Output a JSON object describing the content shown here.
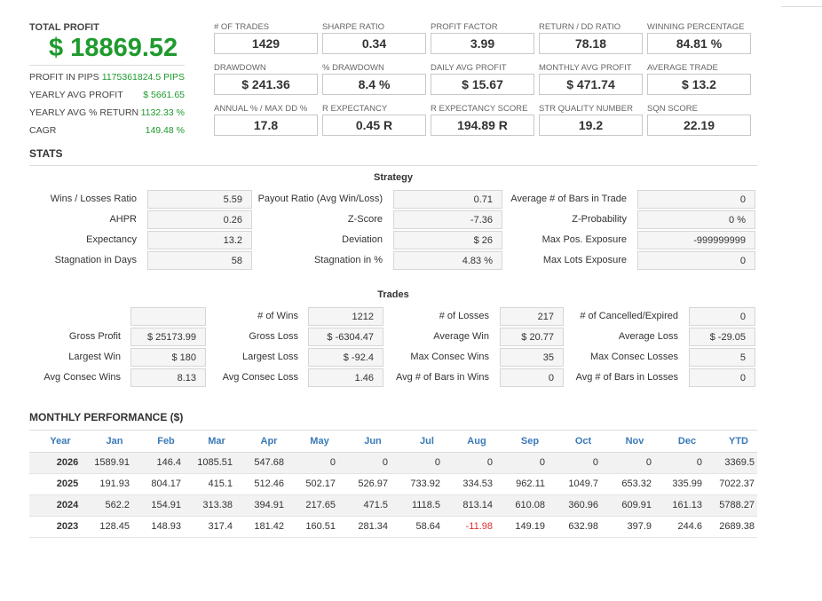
{
  "summary": {
    "title": "TOTAL PROFIT",
    "total": "$ 18869.52",
    "rows": [
      {
        "label": "PROFIT IN PIPS",
        "value": "1175361824.5 PIPS"
      },
      {
        "label": "YEARLY AVG PROFIT",
        "value": "$ 5661.65"
      },
      {
        "label": "YEARLY AVG % RETURN",
        "value": "1132.33 %"
      },
      {
        "label": "CAGR",
        "value": "149.48 %"
      }
    ]
  },
  "metrics": [
    [
      {
        "label": "# OF TRADES",
        "value": "1429"
      },
      {
        "label": "SHARPE RATIO",
        "value": "0.34"
      },
      {
        "label": "PROFIT FACTOR",
        "value": "3.99"
      },
      {
        "label": "RETURN / DD RATIO",
        "value": "78.18"
      },
      {
        "label": "WINNING PERCENTAGE",
        "value": "84.81 %"
      }
    ],
    [
      {
        "label": "DRAWDOWN",
        "value": "$ 241.36"
      },
      {
        "label": "% DRAWDOWN",
        "value": "8.4 %"
      },
      {
        "label": "DAILY AVG PROFIT",
        "value": "$ 15.67"
      },
      {
        "label": "MONTHLY AVG PROFIT",
        "value": "$ 471.74"
      },
      {
        "label": "AVERAGE TRADE",
        "value": "$ 13.2"
      }
    ],
    [
      {
        "label": "ANNUAL % / MAX DD %",
        "value": "17.8"
      },
      {
        "label": "R EXPECTANCY",
        "value": "0.45 R"
      },
      {
        "label": "R EXPECTANCY SCORE",
        "value": "194.89 R"
      },
      {
        "label": "STR QUALITY NUMBER",
        "value": "19.2"
      },
      {
        "label": "SQN SCORE",
        "value": "22.19"
      }
    ]
  ],
  "stats": {
    "title": "STATS",
    "strategy": {
      "title": "Strategy",
      "rows": [
        [
          {
            "label": "Wins / Losses Ratio",
            "value": "5.59"
          },
          {
            "label": "Payout Ratio (Avg Win/Loss)",
            "value": "0.71"
          },
          {
            "label": "Average # of Bars in Trade",
            "value": "0"
          }
        ],
        [
          {
            "label": "AHPR",
            "value": "0.26"
          },
          {
            "label": "Z-Score",
            "value": "-7.36"
          },
          {
            "label": "Z-Probability",
            "value": "0 %"
          }
        ],
        [
          {
            "label": "Expectancy",
            "value": "13.2"
          },
          {
            "label": "Deviation",
            "value": "$ 26"
          },
          {
            "label": "Max Pos. Exposure",
            "value": "-999999999"
          }
        ],
        [
          {
            "label": "Stagnation in Days",
            "value": "58"
          },
          {
            "label": "Stagnation in %",
            "value": "4.83 %"
          },
          {
            "label": "Max Lots Exposure",
            "value": "0"
          }
        ]
      ]
    },
    "trades": {
      "title": "Trades",
      "rows": [
        [
          {
            "label": null,
            "value": null
          },
          {
            "label": "# of Wins",
            "value": "1212"
          },
          {
            "label": "# of Losses",
            "value": "217"
          },
          {
            "label": "# of Cancelled/Expired",
            "value": "0"
          }
        ],
        [
          {
            "label": "Gross Profit",
            "value": "$ 25173.99"
          },
          {
            "label": "Gross Loss",
            "value": "$ -6304.47"
          },
          {
            "label": "Average Win",
            "value": "$ 20.77"
          },
          {
            "label": "Average Loss",
            "value": "$ -29.05"
          }
        ],
        [
          {
            "label": "Largest Win",
            "value": "$ 180"
          },
          {
            "label": "Largest Loss",
            "value": "$ -92.4"
          },
          {
            "label": "Max Consec Wins",
            "value": "35"
          },
          {
            "label": "Max Consec Losses",
            "value": "5"
          }
        ],
        [
          {
            "label": "Avg Consec Wins",
            "value": "8.13"
          },
          {
            "label": "Avg Consec Loss",
            "value": "1.46"
          },
          {
            "label": "Avg # of Bars in Wins",
            "value": "0"
          },
          {
            "label": "Avg # of Bars in Losses",
            "value": "0"
          }
        ]
      ]
    }
  },
  "monthly": {
    "title": "MONTHLY PERFORMANCE ($)",
    "header": [
      "Year",
      "Jan",
      "Feb",
      "Mar",
      "Apr",
      "May",
      "Jun",
      "Jul",
      "Aug",
      "Sep",
      "Oct",
      "Nov",
      "Dec",
      "YTD"
    ],
    "rows": [
      [
        "2026",
        "1589.91",
        "146.4",
        "1085.51",
        "547.68",
        "0",
        "0",
        "0",
        "0",
        "0",
        "0",
        "0",
        "0",
        "3369.5"
      ],
      [
        "2025",
        "191.93",
        "804.17",
        "415.1",
        "512.46",
        "502.17",
        "526.97",
        "733.92",
        "334.53",
        "962.11",
        "1049.7",
        "653.32",
        "335.99",
        "7022.37"
      ],
      [
        "2024",
        "562.2",
        "154.91",
        "313.38",
        "394.91",
        "217.65",
        "471.5",
        "1118.5",
        "813.14",
        "610.08",
        "360.96",
        "609.91",
        "161.13",
        "5788.27"
      ],
      [
        "2023",
        "128.45",
        "148.93",
        "317.4",
        "181.42",
        "160.51",
        "281.34",
        "58.64",
        "-11.98",
        "149.19",
        "632.98",
        "397.9",
        "244.6",
        "2689.38"
      ]
    ]
  }
}
